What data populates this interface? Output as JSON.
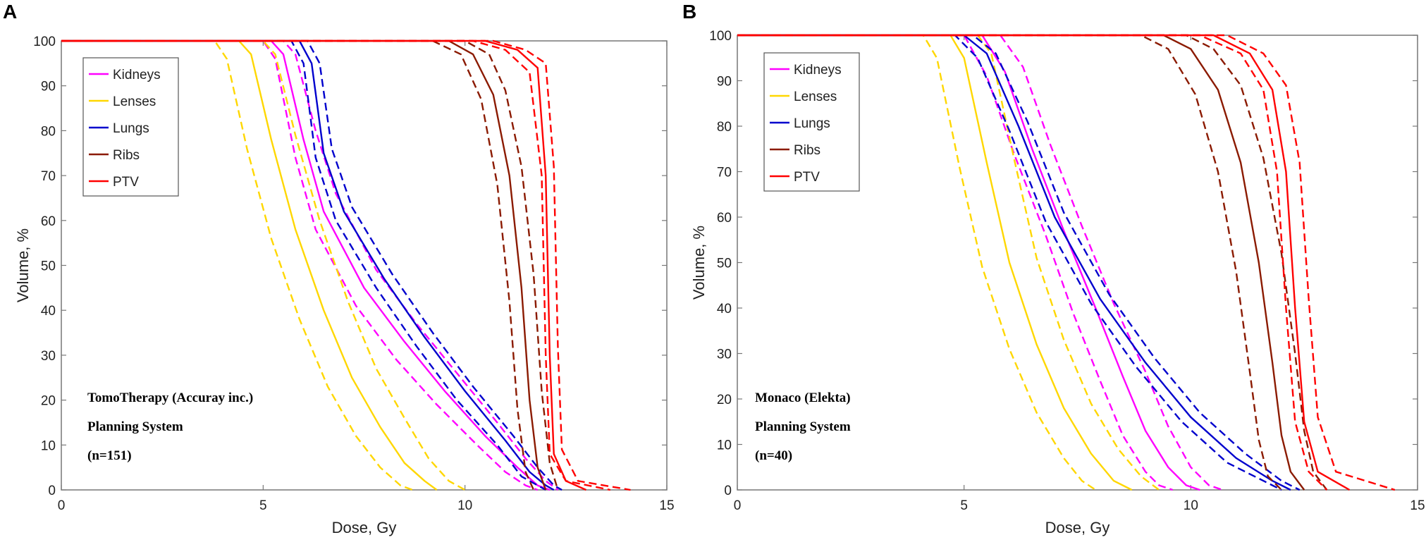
{
  "chart_data": [
    {
      "type": "line",
      "panel": "A",
      "xlabel": "Dose, Gy",
      "ylabel": "Volume, %",
      "xlim": [
        0,
        15
      ],
      "ylim": [
        0,
        100
      ],
      "xticks": [
        "0",
        "5",
        "10",
        "15"
      ],
      "yticks": [
        "0",
        "10",
        "20",
        "30",
        "40",
        "50",
        "60",
        "70",
        "80",
        "90",
        "100"
      ],
      "legend": [
        "Kidneys",
        "Lenses",
        "Lungs",
        "Ribs",
        "PTV"
      ],
      "annotation": [
        "TomoTherapy (Accuray inc.)",
        "Planning System",
        "(n=151)"
      ],
      "series": [
        {
          "name": "Kidneys",
          "color": "#ff00ff",
          "style": "solid",
          "x": [
            0,
            5.2,
            5.5,
            6.0,
            6.5,
            7.5,
            8.5,
            9.5,
            10.5,
            11.3,
            11.8,
            12.1
          ],
          "y": [
            100,
            100,
            97,
            78,
            62,
            45,
            33,
            22,
            12,
            5,
            1,
            0
          ]
        },
        {
          "name": "Kidneys",
          "color": "#ff00ff",
          "style": "dashed",
          "x": [
            0,
            5.0,
            5.3,
            5.8,
            6.3,
            7.3,
            8.3,
            9.3,
            10.3,
            11.0,
            11.5,
            11.8
          ],
          "y": [
            100,
            100,
            96,
            74,
            58,
            41,
            29,
            19,
            10,
            4,
            1,
            0
          ]
        },
        {
          "name": "Kidneys",
          "color": "#ff00ff",
          "style": "dashed",
          "x": [
            0,
            5.5,
            5.8,
            6.3,
            6.8,
            7.8,
            8.8,
            9.8,
            10.8,
            11.5,
            12.0,
            12.3
          ],
          "y": [
            100,
            100,
            97,
            80,
            66,
            49,
            37,
            26,
            15,
            7,
            2,
            0
          ]
        },
        {
          "name": "Lenses",
          "color": "#ffd700",
          "style": "solid",
          "x": [
            0,
            4.4,
            4.7,
            5.2,
            5.8,
            6.5,
            7.2,
            7.9,
            8.5,
            9.0,
            9.3
          ],
          "y": [
            100,
            100,
            97,
            78,
            58,
            40,
            25,
            14,
            6,
            2,
            0
          ]
        },
        {
          "name": "Lenses",
          "color": "#ffd700",
          "style": "dashed",
          "x": [
            0,
            3.8,
            4.1,
            4.6,
            5.2,
            5.9,
            6.6,
            7.3,
            7.9,
            8.4,
            8.7
          ],
          "y": [
            100,
            100,
            96,
            76,
            56,
            38,
            23,
            12,
            5,
            1,
            0
          ]
        },
        {
          "name": "Lenses",
          "color": "#ffd700",
          "style": "dashed",
          "x": [
            0,
            5.0,
            5.3,
            5.8,
            6.4,
            7.1,
            7.8,
            8.5,
            9.1,
            9.6,
            10.0
          ],
          "y": [
            100,
            100,
            97,
            79,
            60,
            42,
            27,
            16,
            7,
            2,
            0
          ]
        },
        {
          "name": "Lungs",
          "color": "#0000cd",
          "style": "solid",
          "x": [
            0,
            5.9,
            6.2,
            6.5,
            7.0,
            8.0,
            9.0,
            10.0,
            11.0,
            11.6,
            12.0,
            12.2
          ],
          "y": [
            100,
            100,
            95,
            75,
            62,
            47,
            34,
            22,
            11,
            4,
            1,
            0
          ]
        },
        {
          "name": "Lungs",
          "color": "#0000cd",
          "style": "dashed",
          "x": [
            0,
            5.7,
            6.0,
            6.3,
            6.8,
            7.8,
            8.8,
            9.8,
            10.8,
            11.4,
            11.8,
            12.0
          ],
          "y": [
            100,
            100,
            95,
            74,
            60,
            45,
            32,
            20,
            10,
            3,
            1,
            0
          ]
        },
        {
          "name": "Lungs",
          "color": "#0000cd",
          "style": "dashed",
          "x": [
            0,
            6.1,
            6.4,
            6.7,
            7.2,
            8.2,
            9.2,
            10.2,
            11.2,
            11.8,
            12.2,
            12.4
          ],
          "y": [
            100,
            100,
            95,
            76,
            63,
            48,
            35,
            23,
            12,
            5,
            1,
            0
          ]
        },
        {
          "name": "Ribs",
          "color": "#8b1a00",
          "style": "solid",
          "x": [
            0,
            9.6,
            10.2,
            10.7,
            11.1,
            11.4,
            11.6,
            11.8,
            12.0
          ],
          "y": [
            100,
            100,
            97,
            88,
            70,
            45,
            20,
            5,
            0
          ]
        },
        {
          "name": "Ribs",
          "color": "#8b1a00",
          "style": "dashed",
          "x": [
            0,
            9.2,
            9.9,
            10.4,
            10.8,
            11.1,
            11.3,
            11.5,
            11.7
          ],
          "y": [
            100,
            100,
            97,
            87,
            68,
            42,
            18,
            4,
            0
          ]
        },
        {
          "name": "Ribs",
          "color": "#8b1a00",
          "style": "dashed",
          "x": [
            0,
            10.0,
            10.6,
            11.0,
            11.4,
            11.7,
            11.9,
            12.1,
            12.3
          ],
          "y": [
            100,
            100,
            97,
            89,
            72,
            48,
            22,
            6,
            0
          ]
        },
        {
          "name": "PTV",
          "color": "#ff0000",
          "style": "solid",
          "x": [
            0,
            10.5,
            11.3,
            11.8,
            12.0,
            12.1,
            12.2,
            12.5,
            13.0
          ],
          "y": [
            100,
            100,
            98,
            94,
            70,
            30,
            8,
            2,
            0
          ]
        },
        {
          "name": "PTV",
          "color": "#ff0000",
          "style": "dashed",
          "x": [
            0,
            10.2,
            11.0,
            11.6,
            11.9,
            12.0,
            12.1,
            12.5,
            13.6
          ],
          "y": [
            100,
            100,
            98,
            93,
            70,
            30,
            8,
            2,
            0
          ]
        },
        {
          "name": "PTV",
          "color": "#ff0000",
          "style": "dashed",
          "x": [
            0,
            10.7,
            11.5,
            12.0,
            12.2,
            12.3,
            12.4,
            12.8,
            14.1
          ],
          "y": [
            100,
            100,
            98,
            95,
            72,
            32,
            9,
            2,
            0
          ]
        }
      ]
    },
    {
      "type": "line",
      "panel": "B",
      "xlabel": "Dose, Gy",
      "ylabel": "Volume, %",
      "xlim": [
        0,
        15
      ],
      "ylim": [
        0,
        100
      ],
      "xticks": [
        "0",
        "5",
        "10",
        "15"
      ],
      "yticks": [
        "0",
        "10",
        "20",
        "30",
        "40",
        "50",
        "60",
        "70",
        "80",
        "90",
        "100"
      ],
      "legend": [
        "Kidneys",
        "Lenses",
        "Lungs",
        "Ribs",
        "PTV"
      ],
      "annotation": [
        "Monaco (Elekta)",
        "Planning System",
        "(n=40)"
      ],
      "series": [
        {
          "name": "Kidneys",
          "color": "#ff00ff",
          "style": "solid",
          "x": [
            0,
            5.4,
            5.9,
            6.5,
            7.2,
            7.9,
            8.5,
            9.0,
            9.5,
            9.9,
            10.2
          ],
          "y": [
            100,
            100,
            92,
            75,
            57,
            40,
            25,
            13,
            5,
            1,
            0
          ]
        },
        {
          "name": "Kidneys",
          "color": "#ff00ff",
          "style": "dashed",
          "x": [
            0,
            5.0,
            5.5,
            6.1,
            6.8,
            7.4,
            8.0,
            8.5,
            9.0,
            9.3,
            9.6
          ],
          "y": [
            100,
            100,
            91,
            74,
            56,
            39,
            24,
            12,
            4,
            1,
            0
          ]
        },
        {
          "name": "Kidneys",
          "color": "#ff00ff",
          "style": "dashed",
          "x": [
            0,
            5.8,
            6.3,
            6.9,
            7.6,
            8.3,
            9.0,
            9.5,
            10.0,
            10.4,
            10.7
          ],
          "y": [
            100,
            100,
            93,
            76,
            58,
            41,
            26,
            14,
            5,
            1,
            0
          ]
        },
        {
          "name": "Lenses",
          "color": "#ffd700",
          "style": "solid",
          "x": [
            0,
            4.7,
            5.0,
            5.5,
            6.0,
            6.6,
            7.2,
            7.8,
            8.3,
            8.7
          ],
          "y": [
            100,
            100,
            95,
            72,
            50,
            32,
            18,
            8,
            2,
            0
          ]
        },
        {
          "name": "Lenses",
          "color": "#ffd700",
          "style": "dashed",
          "x": [
            0,
            4.1,
            4.4,
            4.9,
            5.4,
            6.0,
            6.6,
            7.2,
            7.6,
            7.9
          ],
          "y": [
            100,
            100,
            95,
            71,
            49,
            31,
            17,
            7,
            2,
            0
          ]
        },
        {
          "name": "Lenses",
          "color": "#ffd700",
          "style": "dashed",
          "x": [
            0,
            5.3,
            5.6,
            6.1,
            6.6,
            7.2,
            7.8,
            8.4,
            8.9,
            9.3
          ],
          "y": [
            100,
            100,
            96,
            73,
            51,
            33,
            19,
            9,
            3,
            0
          ]
        },
        {
          "name": "Lungs",
          "color": "#0000cd",
          "style": "solid",
          "x": [
            0,
            5.0,
            5.5,
            6.2,
            7.0,
            8.0,
            9.0,
            10.0,
            11.0,
            11.8,
            12.2
          ],
          "y": [
            100,
            100,
            96,
            80,
            60,
            42,
            28,
            16,
            7,
            2,
            0
          ]
        },
        {
          "name": "Lungs",
          "color": "#0000cd",
          "style": "dashed",
          "x": [
            0,
            4.8,
            5.3,
            6.0,
            6.8,
            7.8,
            8.8,
            9.8,
            10.8,
            11.6,
            12.0
          ],
          "y": [
            100,
            100,
            95,
            79,
            59,
            41,
            27,
            15,
            6,
            2,
            0
          ]
        },
        {
          "name": "Lungs",
          "color": "#0000cd",
          "style": "dashed",
          "x": [
            0,
            5.2,
            5.7,
            6.4,
            7.2,
            8.2,
            9.2,
            10.2,
            11.2,
            12.0,
            12.4
          ],
          "y": [
            100,
            100,
            96,
            81,
            61,
            43,
            29,
            17,
            8,
            2,
            0
          ]
        },
        {
          "name": "Ribs",
          "color": "#8b1a00",
          "style": "solid",
          "x": [
            0,
            9.4,
            10.0,
            10.6,
            11.1,
            11.5,
            11.8,
            12.0,
            12.2,
            12.5
          ],
          "y": [
            100,
            100,
            97,
            88,
            72,
            50,
            28,
            12,
            4,
            0
          ]
        },
        {
          "name": "Ribs",
          "color": "#8b1a00",
          "style": "dashed",
          "x": [
            0,
            8.9,
            9.5,
            10.1,
            10.6,
            11.0,
            11.3,
            11.5,
            11.7,
            12.0
          ],
          "y": [
            100,
            100,
            97,
            87,
            70,
            48,
            26,
            11,
            3,
            0
          ]
        },
        {
          "name": "Ribs",
          "color": "#8b1a00",
          "style": "dashed",
          "x": [
            0,
            9.9,
            10.5,
            11.1,
            11.6,
            12.0,
            12.3,
            12.5,
            12.7,
            13.0
          ],
          "y": [
            100,
            100,
            97,
            89,
            73,
            52,
            30,
            13,
            4,
            0
          ]
        },
        {
          "name": "PTV",
          "color": "#ff0000",
          "style": "solid",
          "x": [
            0,
            10.5,
            11.3,
            11.8,
            12.1,
            12.3,
            12.5,
            12.8,
            13.5
          ],
          "y": [
            100,
            100,
            96,
            88,
            70,
            40,
            15,
            4,
            0
          ]
        },
        {
          "name": "PTV",
          "color": "#ff0000",
          "style": "dashed",
          "x": [
            0,
            10.2,
            11.1,
            11.6,
            11.9,
            12.1,
            12.3,
            12.6,
            13.0
          ],
          "y": [
            100,
            100,
            96,
            88,
            70,
            40,
            15,
            4,
            0
          ]
        },
        {
          "name": "PTV",
          "color": "#ff0000",
          "style": "dashed",
          "x": [
            0,
            10.8,
            11.6,
            12.1,
            12.4,
            12.6,
            12.8,
            13.2,
            14.5
          ],
          "y": [
            100,
            100,
            96,
            89,
            72,
            42,
            16,
            4,
            0
          ]
        }
      ]
    }
  ]
}
